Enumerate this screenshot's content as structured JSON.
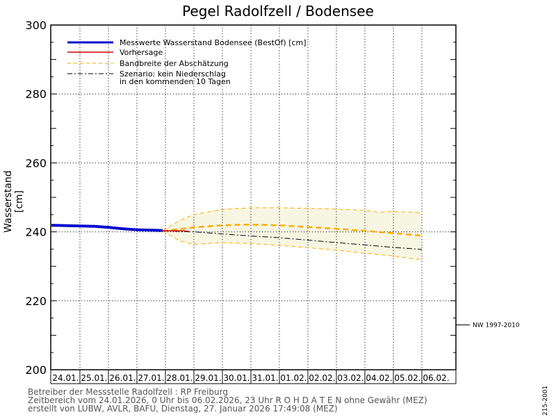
{
  "header": {
    "title": "Pegel Radolfzell / Bodensee"
  },
  "chart_data": {
    "type": "line",
    "title": "Pegel Radolfzell / Bodensee",
    "ylabel": "Wasserstand  [cm]",
    "xlabel": "",
    "ylim": [
      200,
      300
    ],
    "yticks": [
      200,
      220,
      240,
      260,
      280,
      300
    ],
    "xlim": [
      0,
      14
    ],
    "grid": true,
    "categories": [
      "24.01.",
      "25.01.",
      "26.01.",
      "27.01.",
      "28.01.",
      "29.01.",
      "30.01.",
      "31.01.",
      "01.02.",
      "02.02.",
      "03.02.",
      "04.02.",
      "05.02.",
      "06.02."
    ],
    "legend": {
      "position": "top-left",
      "entries": [
        {
          "label": "Messwerte Wasserstand Bodensee (BestOf)  [cm]",
          "color": "#0000cc",
          "style": "thick-solid"
        },
        {
          "label": "Vorhersage",
          "color": "#cc0000",
          "style": "solid"
        },
        {
          "label": "Bandbreite der Abschätzung",
          "color": "#ffaa00",
          "style": "dashed"
        },
        {
          "label": "Szenario: kein Niederschlag",
          "label2": "in den kommenden 10 Tagen",
          "color": "#000000",
          "style": "dash-dot"
        }
      ]
    },
    "series": [
      {
        "name": "Messwerte",
        "x": [
          0,
          0.5,
          1,
          1.5,
          2,
          2.5,
          3,
          3.5,
          3.9
        ],
        "values": [
          241.9,
          241.8,
          241.7,
          241.6,
          241.3,
          240.9,
          240.6,
          240.5,
          240.4
        ]
      },
      {
        "name": "Vorhersage",
        "x": [
          3.9,
          4.2,
          4.6,
          4.8
        ],
        "values": [
          240.3,
          240.3,
          240.3,
          240.2
        ]
      },
      {
        "name": "Bandbreite oben",
        "x": [
          3.9,
          4.5,
          5,
          6,
          7,
          8,
          9,
          10,
          11,
          11.5,
          12,
          13
        ],
        "values": [
          240.4,
          243.3,
          245.0,
          246.5,
          247.0,
          247.0,
          246.8,
          246.6,
          246.2,
          245.7,
          245.9,
          245.6
        ]
      },
      {
        "name": "Bandbreite unten",
        "x": [
          3.9,
          4.5,
          5,
          6,
          7,
          8,
          9,
          10,
          11,
          12,
          13
        ],
        "values": [
          240.3,
          237.4,
          236.4,
          236.9,
          236.6,
          236.1,
          235.4,
          234.7,
          233.8,
          233.0,
          231.9
        ]
      },
      {
        "name": "Bandbreite mittel",
        "x": [
          3.9,
          4.5,
          5,
          6,
          7,
          8,
          9,
          10,
          11,
          12,
          13
        ],
        "values": [
          240.3,
          240.8,
          241.3,
          241.9,
          242.1,
          241.9,
          241.4,
          240.9,
          240.3,
          239.6,
          238.9
        ]
      },
      {
        "name": "Szenario",
        "x": [
          3.9,
          5,
          6,
          7,
          8,
          9,
          10,
          11,
          12,
          13
        ],
        "values": [
          240.3,
          240.0,
          239.4,
          238.8,
          238.3,
          237.6,
          236.9,
          236.2,
          235.5,
          234.9
        ]
      }
    ],
    "annotations": [
      {
        "label": "NW 1997-2010",
        "y": 213
      }
    ],
    "colors": {
      "band_fill": "#f7f6e3",
      "grid": "#000000"
    }
  },
  "footer": {
    "line1": "Betreiber der Messstelle Radolfzell : RP Freiburg",
    "line2": "Zeitbereich vom 24.01.2026, 0 Uhr bis 06.02.2026, 23 Uhr    R O H D A T E N ohne Gewähr (MEZ)",
    "line3": "erstellt von LUBW, AVLR, BAFU, Dienstag, 27. Januar 2026 17:49:08 (MEZ)",
    "code": "215-2001"
  }
}
